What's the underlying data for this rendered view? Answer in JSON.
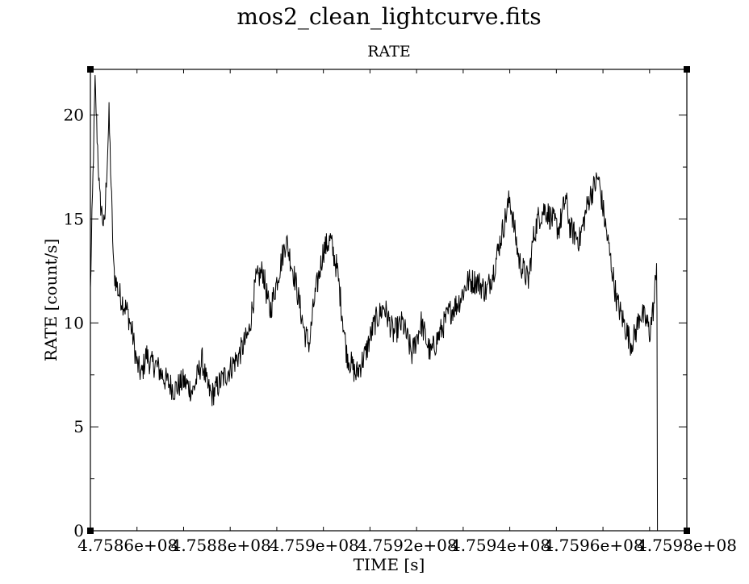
{
  "chart_data": {
    "type": "line",
    "title": "mos2_clean_lightcurve.fits",
    "subtitle": "RATE",
    "xlabel": "TIME [s]",
    "ylabel": "RATE [count/s]",
    "xlim": [
      475852000,
      475980000
    ],
    "ylim": [
      0,
      22.2
    ],
    "x_ticks": [
      475860000,
      475880000,
      475900000,
      475920000,
      475940000,
      475960000,
      475980000
    ],
    "x_tick_labels": [
      "4.7586e+08",
      "4.7588e+08",
      "4.759e+08",
      "4.7592e+08",
      "4.7594e+08",
      "4.7596e+08",
      "4.7598e+08"
    ],
    "y_ticks": [
      0,
      5,
      10,
      15,
      20
    ],
    "y_tick_labels": [
      "0",
      "5",
      "10",
      "15",
      "20"
    ],
    "grid": false,
    "series": [
      {
        "color": "#000000",
        "x": [
          475852000,
          475853000,
          475854000,
          475855000,
          475856000,
          475857000,
          475858000,
          475859000,
          475860000,
          475861000,
          475862000,
          475863000,
          475864000,
          475865000,
          475866000,
          475868000,
          475870000,
          475872000,
          475874000,
          475876000,
          475877000,
          475878000,
          475880000,
          475882000,
          475884000,
          475886000,
          475887500,
          475889000,
          475890500,
          475892000,
          475894000,
          475896000,
          475898000,
          475899000,
          475900000,
          475902000,
          475903500,
          475905000,
          475907000,
          475909000,
          475911000,
          475913000,
          475915000,
          475917000,
          475919000,
          475921000,
          475923000,
          475925000,
          475927000,
          475929000,
          475931000,
          475933000,
          475935000,
          475937000,
          475938500,
          475940000,
          475942000,
          475944000,
          475946000,
          475947000,
          475948000,
          475949500,
          475951000,
          475952500,
          475954000,
          475955000,
          475957000,
          475959000,
          475961000,
          475963000,
          475964000,
          475965000,
          475966500,
          475968000,
          475969000,
          475970000,
          475971500,
          475972000,
          475973000,
          475973500,
          475973600,
          475973700
        ],
        "y": [
          11.5,
          21.5,
          16.0,
          14.5,
          20.0,
          12.5,
          11.5,
          11.0,
          10.5,
          9.5,
          8.0,
          7.5,
          8.5,
          8.0,
          8.0,
          7.3,
          6.8,
          7.2,
          6.7,
          8.2,
          7.0,
          6.5,
          7.2,
          7.8,
          8.5,
          9.5,
          12.0,
          12.5,
          10.5,
          12.0,
          14.0,
          12.0,
          9.5,
          9.0,
          11.0,
          13.5,
          14.0,
          12.5,
          8.5,
          7.5,
          8.5,
          10.0,
          10.8,
          9.5,
          10.0,
          8.5,
          10.0,
          8.5,
          9.5,
          10.5,
          11.0,
          12.0,
          12.0,
          11.5,
          12.5,
          14.0,
          16.0,
          13.0,
          12.0,
          14.0,
          15.0,
          15.5,
          15.0,
          14.5,
          16.0,
          14.5,
          14.0,
          16.0,
          17.0,
          14.0,
          12.5,
          11.0,
          10.0,
          9.0,
          9.5,
          10.5,
          10.0,
          9.5,
          11.0,
          13.0,
          10.5,
          0.0
        ]
      }
    ]
  }
}
